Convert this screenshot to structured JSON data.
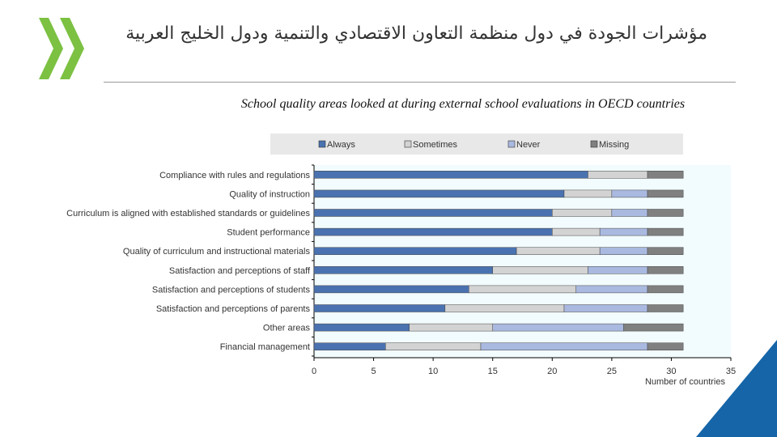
{
  "slide": {
    "title": "مؤشرات الجودة في دول منظمة التعاون الاقتصادي والتنمية ودول الخليج العربية"
  },
  "colors": {
    "always": "#4a72b0",
    "sometimes": "#d3d3d3",
    "never": "#a9b9e0",
    "missing": "#808080",
    "logo": "#7cc142",
    "corner": "#1565a8",
    "plot_bg": "#f2fbfd"
  },
  "chart_data": {
    "type": "bar",
    "orientation": "horizontal",
    "stacked": true,
    "title": "School quality areas looked at during external school evaluations in OECD countries",
    "xlabel": "Number of countries",
    "ylabel": "",
    "xlim": [
      0,
      35
    ],
    "xticks": [
      0,
      5,
      10,
      15,
      20,
      25,
      30,
      35
    ],
    "grid": false,
    "legend_position": "top",
    "categories": [
      "Compliance with rules and regulations",
      "Quality of instruction",
      "Curriculum is aligned with established standards or guidelines",
      "Student performance",
      "Quality of curriculum and instructional materials",
      "Satisfaction and perceptions of staff",
      "Satisfaction and perceptions of students",
      "Satisfaction and perceptions of parents",
      "Other areas",
      "Financial management"
    ],
    "series": [
      {
        "name": "Always",
        "color": "#4a72b0",
        "values": [
          23,
          21,
          20,
          20,
          17,
          15,
          13,
          11,
          8,
          6
        ]
      },
      {
        "name": "Sometimes",
        "color": "#d3d3d3",
        "values": [
          5,
          4,
          5,
          4,
          7,
          8,
          9,
          10,
          7,
          8
        ]
      },
      {
        "name": "Never",
        "color": "#a9b9e0",
        "values": [
          0,
          3,
          3,
          4,
          4,
          5,
          6,
          7,
          11,
          14
        ]
      },
      {
        "name": "Missing",
        "color": "#808080",
        "values": [
          3,
          3,
          3,
          3,
          3,
          3,
          3,
          3,
          5,
          3
        ]
      }
    ]
  }
}
